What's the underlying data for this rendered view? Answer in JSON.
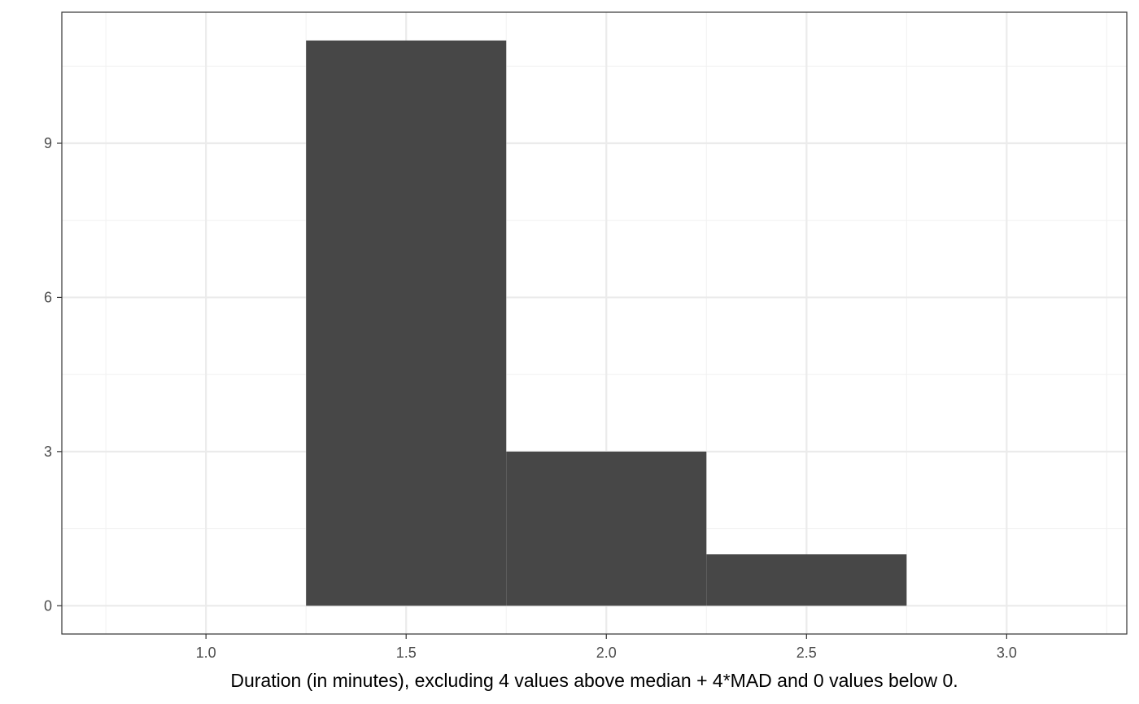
{
  "chart_data": {
    "type": "bar",
    "subtype": "histogram",
    "title": "",
    "xlabel": "Duration (in minutes), excluding 4 values above median + 4*MAD and  0 values below 0.",
    "ylabel": "",
    "bins": [
      {
        "x_start": 1.25,
        "x_end": 1.75,
        "count": 11
      },
      {
        "x_start": 1.75,
        "x_end": 2.25,
        "count": 3
      },
      {
        "x_start": 2.25,
        "x_end": 2.75,
        "count": 1
      }
    ],
    "xlim": [
      0.64,
      3.3
    ],
    "ylim": [
      -0.55,
      11.55
    ],
    "x_ticks": [
      1.0,
      1.5,
      2.0,
      2.5,
      3.0
    ],
    "x_tick_labels": [
      "1.0",
      "1.5",
      "2.0",
      "2.5",
      "3.0"
    ],
    "y_ticks": [
      0,
      3,
      6,
      9
    ],
    "y_tick_labels": [
      "0",
      "3",
      "6",
      "9"
    ],
    "grid": true,
    "legend": "none",
    "colors": {
      "bar": "#474747",
      "panel_border": "#333333",
      "grid_major": "#ebebeb",
      "grid_minor": "#f2f2f2",
      "tick_text": "#4d4d4d"
    }
  }
}
